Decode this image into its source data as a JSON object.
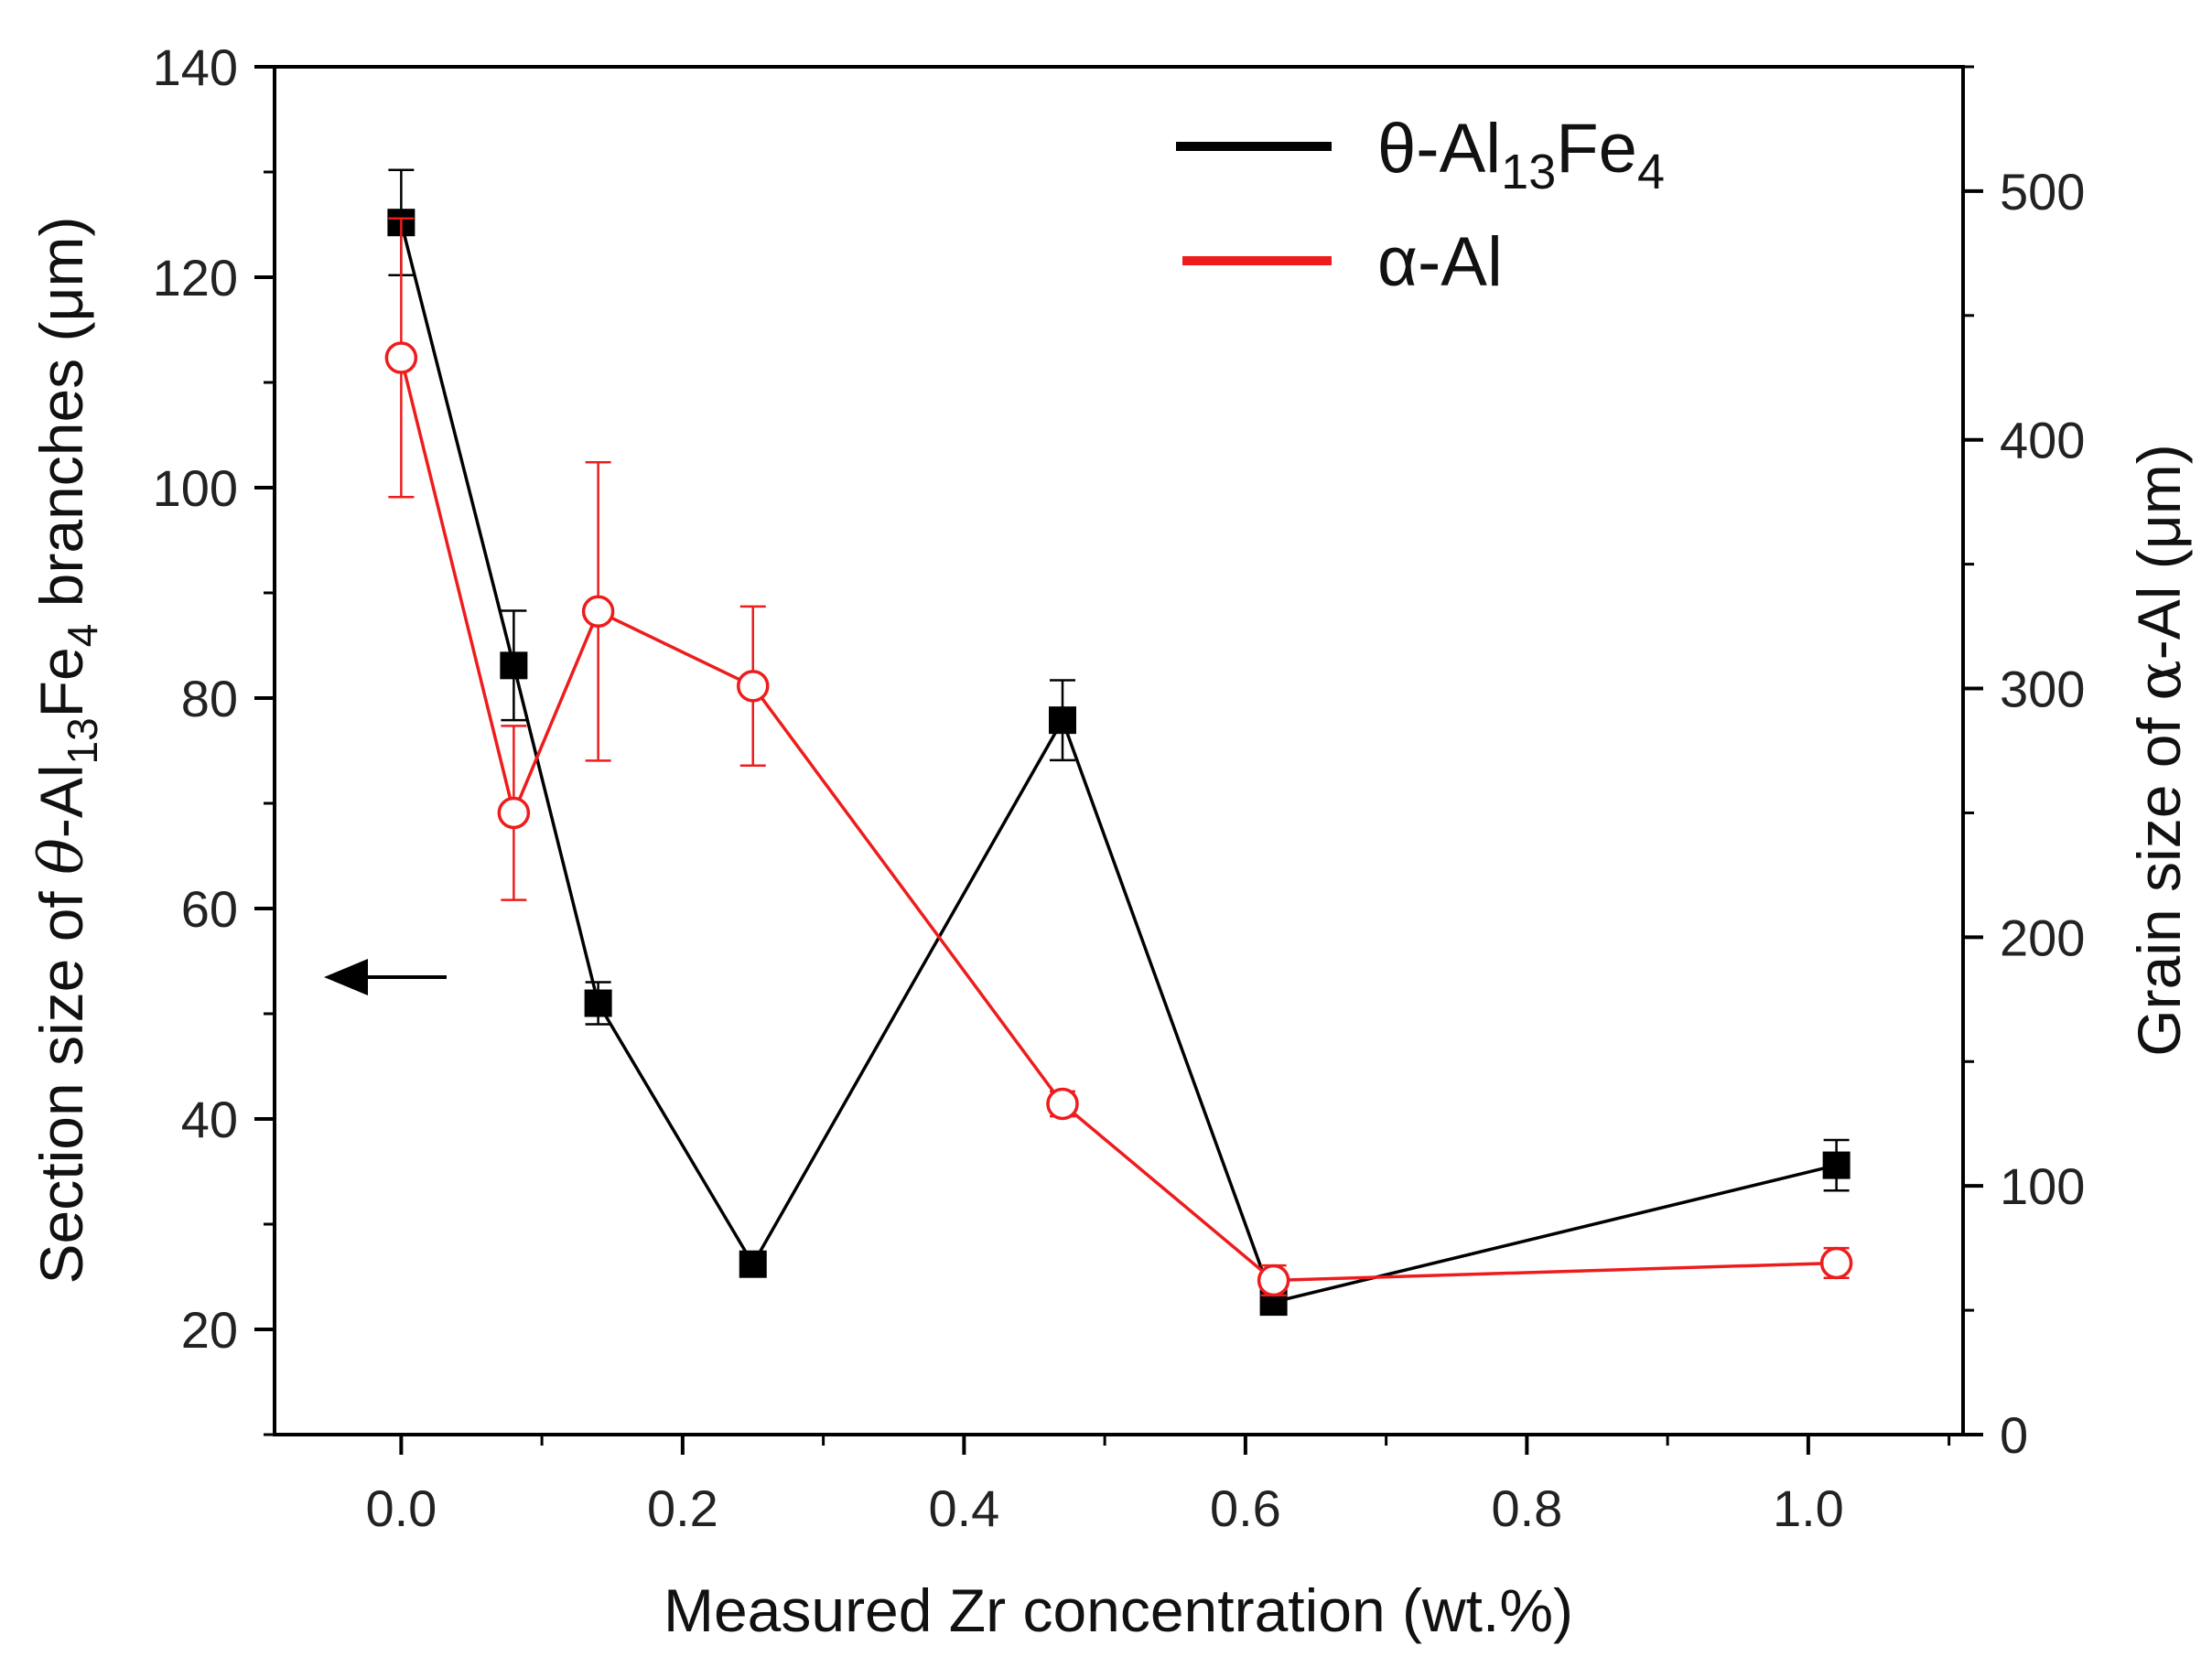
{
  "chart_data": {
    "type": "line",
    "x_axis": {
      "label": "Measured Zr concentration (wt.%)",
      "range": [
        -0.09,
        1.11
      ],
      "ticks": [
        0.0,
        0.2,
        0.4,
        0.6,
        0.8,
        1.0
      ],
      "tick_labels": [
        "0.0",
        "0.2",
        "0.4",
        "0.6",
        "0.8",
        "1.0"
      ]
    },
    "y_left_axis": {
      "label_parts": {
        "prefix": "Section size of ",
        "theta": "θ",
        "al": "-Al",
        "sub13": "13",
        "fe": "Fe",
        "sub4": "4",
        "suffix": " branches (μm)"
      },
      "range": [
        10,
        140
      ],
      "ticks": [
        20,
        40,
        60,
        80,
        100,
        120,
        140
      ],
      "tick_labels": [
        "20",
        "40",
        "60",
        "80",
        "100",
        "120",
        "140"
      ]
    },
    "y_right_axis": {
      "label_parts": {
        "prefix": "Grain size of ",
        "alpha": "α",
        "suffix": "-Al (μm)"
      },
      "range": [
        0,
        550
      ],
      "ticks": [
        0,
        100,
        200,
        300,
        400,
        500
      ],
      "tick_labels": [
        "0",
        "100",
        "200",
        "300",
        "400",
        "500"
      ]
    },
    "series": [
      {
        "name": "θ-Al13Fe4",
        "legend": {
          "main": "θ-Al",
          "sub1": "13",
          "mid": "Fe",
          "sub2": "4"
        },
        "color": "#000000",
        "axis": "left",
        "marker": "filled-square",
        "x": [
          0.0,
          0.08,
          0.14,
          0.25,
          0.47,
          0.62,
          1.02
        ],
        "y": [
          125.2,
          83.1,
          51.0,
          26.2,
          77.9,
          22.6,
          35.6
        ],
        "error": [
          5.0,
          5.2,
          2.0,
          0.8,
          3.8,
          0.8,
          2.4
        ]
      },
      {
        "name": "α-Al",
        "legend": {
          "main": "α-Al"
        },
        "color": "#ee1c1c",
        "axis": "right",
        "marker": "open-circle",
        "x": [
          0.0,
          0.08,
          0.14,
          0.25,
          0.47,
          0.62,
          1.02
        ],
        "y": [
          433,
          250,
          331,
          301,
          133,
          62,
          69
        ],
        "error": [
          56,
          35,
          60,
          32,
          5,
          6,
          6
        ]
      }
    ],
    "annotation": {
      "type": "arrow",
      "direction": "left",
      "meaning": "left axis applies to θ-Al13Fe4"
    }
  }
}
